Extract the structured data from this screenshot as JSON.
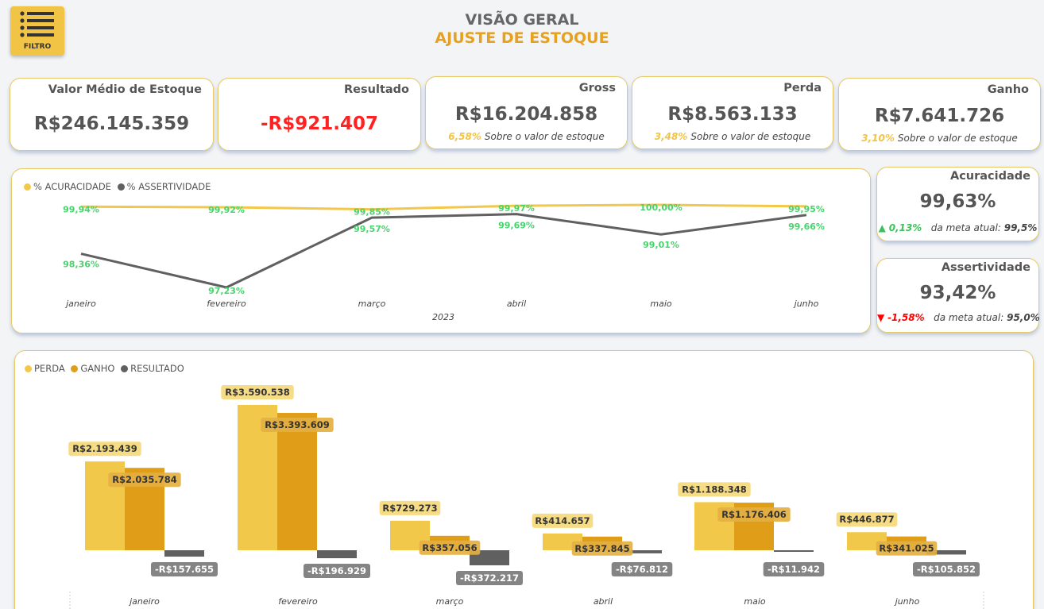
{
  "filter_button": {
    "label": "FILTRO",
    "icon": "list-icon"
  },
  "header": {
    "title": "VISÃO GERAL",
    "subtitle": "AJUSTE DE ESTOQUE"
  },
  "kpis": [
    {
      "title": "Valor Médio de Estoque",
      "value": "R$246.145.359"
    },
    {
      "title": "Resultado",
      "value": "-R$921.407",
      "value_color": "#ff2222"
    },
    {
      "title": "Gross",
      "value": "R$16.204.858",
      "pct": "6,58%",
      "sub": "Sobre o valor de estoque"
    },
    {
      "title": "Perda",
      "value": "R$8.563.133",
      "pct": "3,48%",
      "sub": "Sobre o valor de estoque"
    },
    {
      "title": "Ganho",
      "value": "R$7.641.726",
      "pct": "3,10%",
      "sub": "Sobre o valor de estoque"
    }
  ],
  "side_cards": {
    "acuracidade": {
      "title": "Acuracidade",
      "value": "99,63%",
      "arrow": "▲",
      "delta": "0,13%",
      "meta_label": "da meta atual:",
      "meta_value": "99,5%"
    },
    "assertividade": {
      "title": "Assertividade",
      "value": "93,42%",
      "arrow": "▼",
      "delta": "-1,58%",
      "meta_label": "da meta atual:",
      "meta_value": "95,0%"
    }
  },
  "colors": {
    "yellow": "#f2c84b",
    "orange": "#e09d17",
    "gray": "#606060",
    "green": "#46d46c",
    "red": "#ff0000"
  },
  "chart_data": [
    {
      "type": "line",
      "categories": [
        "janeiro",
        "fevereiro",
        "março",
        "abril",
        "maio",
        "junho"
      ],
      "xlabel": "2023",
      "series": [
        {
          "name": "% ACURACIDADE",
          "values": [
            99.94,
            99.92,
            99.85,
            99.97,
            100.0,
            99.95
          ],
          "labels": [
            "99,94%",
            "99,92%",
            "99,85%",
            "99,97%",
            "100,00%",
            "99,95%"
          ]
        },
        {
          "name": "% ASSERTIVIDADE",
          "values": [
            98.36,
            97.23,
            99.57,
            99.69,
            99.01,
            99.66
          ],
          "labels": [
            "98,36%",
            "97,23%",
            "99,57%",
            "99,69%",
            "99,01%",
            "99,66%"
          ]
        }
      ]
    },
    {
      "type": "bar",
      "categories": [
        "janeiro",
        "fevereiro",
        "março",
        "abril",
        "maio",
        "junho"
      ],
      "series": [
        {
          "name": "PERDA",
          "values": [
            2193439,
            3590538,
            729273,
            414657,
            1188348,
            446877
          ],
          "labels": [
            "R$2.193.439",
            "R$3.590.538",
            "R$729.273",
            "R$414.657",
            "R$1.188.348",
            "R$446.877"
          ]
        },
        {
          "name": "GANHO",
          "values": [
            2035784,
            3393609,
            357056,
            337845,
            1176406,
            341025
          ],
          "labels": [
            "R$2.035.784",
            "R$3.393.609",
            "R$357.056",
            "R$337.845",
            "R$1.176.406",
            "R$341.025"
          ]
        },
        {
          "name": "RESULTADO",
          "values": [
            -157655,
            -196929,
            -372217,
            -76812,
            -11942,
            -105852
          ],
          "labels": [
            "-R$157.655",
            "-R$196.929",
            "-R$372.217",
            "-R$76.812",
            "-R$11.942",
            "-R$105.852"
          ]
        }
      ]
    }
  ]
}
